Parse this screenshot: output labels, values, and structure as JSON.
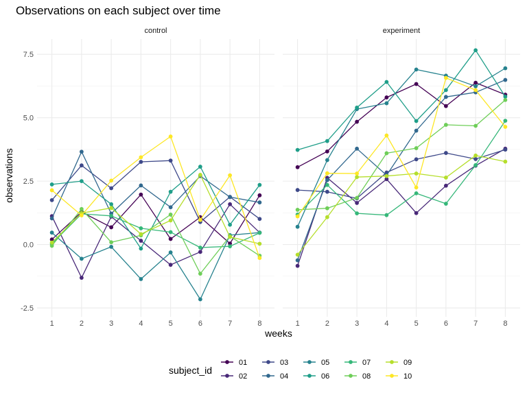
{
  "chart_data": {
    "type": "line",
    "title": "Observations on each subject over time",
    "xlabel": "weeks",
    "ylabel": "observations",
    "x": [
      1,
      2,
      3,
      4,
      5,
      6,
      7,
      8
    ],
    "xticks": [
      "1",
      "2",
      "3",
      "4",
      "5",
      "6",
      "7",
      "8"
    ],
    "yticks": [
      -2.5,
      0.0,
      2.5,
      5.0,
      7.5
    ],
    "ytick_labels": [
      "-2.5",
      "0.0",
      "2.5",
      "5.0",
      "7.5"
    ],
    "ylim": [
      -2.85,
      8.1
    ],
    "grid": true,
    "legend": {
      "title": "subject_id",
      "placement": "bottom",
      "entries": [
        "01",
        "02",
        "03",
        "04",
        "05",
        "06",
        "07",
        "08",
        "09",
        "10"
      ]
    },
    "colors": {
      "01": "#440154",
      "02": "#482878",
      "03": "#3e4989",
      "04": "#31688e",
      "05": "#26828e",
      "06": "#1f9e89",
      "07": "#35b779",
      "08": "#6ece58",
      "09": "#b5de2b",
      "10": "#fde725"
    },
    "panels": [
      {
        "label": "control",
        "series": [
          {
            "name": "01",
            "values": [
              0.2,
              1.28,
              0.68,
              1.97,
              0.22,
              1.08,
              0.04,
              1.94
            ]
          },
          {
            "name": "02",
            "values": [
              1.12,
              -1.31,
              1.1,
              0.15,
              -0.8,
              -0.29,
              1.59,
              0.47
            ]
          },
          {
            "name": "03",
            "values": [
              1.75,
              3.12,
              2.22,
              3.26,
              3.31,
              0.89,
              1.88,
              1.01
            ]
          },
          {
            "name": "04",
            "values": [
              1.03,
              3.66,
              1.22,
              2.33,
              1.47,
              2.7,
              1.87,
              1.66
            ]
          },
          {
            "name": "05",
            "values": [
              0.47,
              -0.56,
              -0.09,
              -1.36,
              -0.31,
              -2.16,
              0.37,
              0.47
            ]
          },
          {
            "name": "06",
            "values": [
              2.37,
              2.5,
              1.59,
              -0.16,
              2.08,
              3.07,
              0.78,
              2.35
            ]
          },
          {
            "name": "07",
            "values": [
              0.03,
              1.21,
              1.13,
              0.64,
              0.49,
              -0.12,
              -0.07,
              0.46
            ]
          },
          {
            "name": "08",
            "values": [
              -0.05,
              1.4,
              0.09,
              0.36,
              1.18,
              -1.15,
              0.33,
              -0.44
            ]
          },
          {
            "name": "09",
            "values": [
              0.08,
              1.24,
              1.44,
              0.41,
              0.95,
              2.75,
              0.3,
              0.03
            ]
          },
          {
            "name": "10",
            "values": [
              2.14,
              1.15,
              2.52,
              3.44,
              4.26,
              0.97,
              2.73,
              -0.53
            ]
          }
        ]
      },
      {
        "label": "experiment",
        "series": [
          {
            "name": "01",
            "values": [
              3.05,
              3.67,
              4.84,
              5.8,
              6.33,
              5.46,
              6.38,
              5.91
            ]
          },
          {
            "name": "02",
            "values": [
              -0.84,
              2.63,
              1.64,
              2.58,
              1.24,
              2.32,
              3.11,
              3.78
            ]
          },
          {
            "name": "03",
            "values": [
              2.15,
              2.08,
              1.82,
              2.84,
              3.36,
              3.61,
              3.37,
              3.74
            ]
          },
          {
            "name": "04",
            "values": [
              -0.62,
              2.54,
              3.78,
              2.73,
              4.49,
              5.82,
              6.0,
              6.49
            ]
          },
          {
            "name": "05",
            "values": [
              0.7,
              3.33,
              5.34,
              5.57,
              6.9,
              6.66,
              6.24,
              6.95
            ]
          },
          {
            "name": "06",
            "values": [
              3.73,
              4.08,
              5.4,
              6.41,
              4.87,
              6.09,
              7.66,
              5.83
            ]
          },
          {
            "name": "07",
            "values": [
              1.18,
              2.35,
              1.23,
              1.16,
              2.02,
              1.61,
              3.13,
              4.88
            ]
          },
          {
            "name": "08",
            "values": [
              1.37,
              1.43,
              1.84,
              3.6,
              3.8,
              4.72,
              4.68,
              5.7
            ]
          },
          {
            "name": "09",
            "values": [
              -0.4,
              1.08,
              2.66,
              2.7,
              2.8,
              2.64,
              3.51,
              3.27
            ]
          },
          {
            "name": "10",
            "values": [
              1.11,
              2.81,
              2.8,
              4.3,
              2.25,
              6.57,
              6.09,
              4.64
            ]
          }
        ]
      }
    ]
  }
}
